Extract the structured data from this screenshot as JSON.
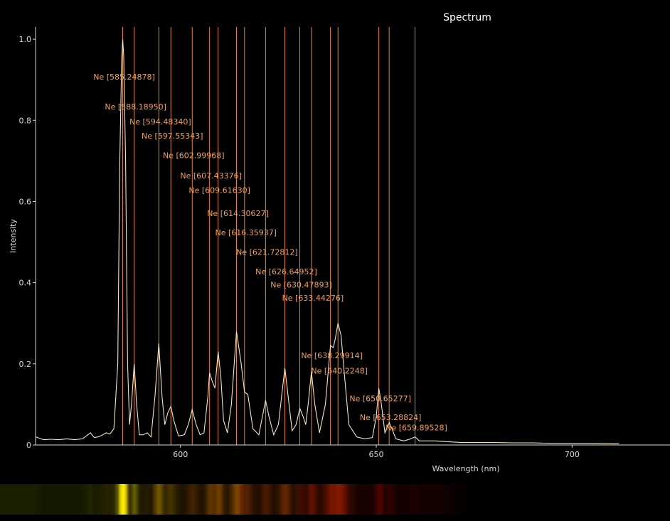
{
  "chart_data": {
    "type": "line",
    "title": "Spectrum",
    "xlabel": "Wavelength (nm)",
    "ylabel": "Intensity",
    "xlim": [
      563,
      725
    ],
    "ylim": [
      0,
      1.03
    ],
    "x_ticks": [
      "600",
      "650",
      "700"
    ],
    "x_tick_values": [
      600,
      650,
      700
    ],
    "y_ticks": [
      "0",
      "0.2",
      "0.4",
      "0.6",
      "0.8",
      "1.0"
    ],
    "y_tick_values": [
      0,
      0.2,
      0.4,
      0.6,
      0.8,
      1.0
    ],
    "grid": false,
    "colors": {
      "spectrum": "#f3e6c8",
      "reference_line": "#e8833a",
      "label": "#f0a05a",
      "background": "#000000"
    },
    "series": [
      {
        "x": [
          563,
          565,
          567,
          569,
          571,
          573,
          575,
          577,
          578,
          579,
          580,
          581,
          582,
          583,
          584,
          584.5,
          585,
          585.25,
          585.5,
          586,
          586.5,
          587,
          587.5,
          588.19,
          588.8,
          589.5,
          590.5,
          591.5,
          592.5,
          593.5,
          594.48,
          595.3,
          596,
          596.8,
          597.55,
          598.3,
          599.5,
          601,
          602,
          603,
          604,
          605,
          606,
          607,
          607.43,
          608,
          608.8,
          609.62,
          610.3,
          611,
          612,
          613,
          614.31,
          615.5,
          616.36,
          617.2,
          618.5,
          620,
          621.73,
          622.6,
          623.8,
          625,
          626.65,
          627.5,
          628.5,
          629.5,
          630.48,
          631.3,
          632,
          632.6,
          633.44,
          634.3,
          635.5,
          637,
          638.3,
          639,
          639.5,
          640.22,
          641,
          641.8,
          643,
          645,
          647,
          649,
          650,
          650.65,
          651.3,
          652.2,
          653.29,
          654,
          655,
          657,
          658.5,
          659.9,
          661,
          663,
          665,
          668,
          672,
          676,
          680,
          685,
          690,
          695,
          700,
          705,
          710,
          712
        ],
        "values": [
          0.02,
          0.013,
          0.014,
          0.013,
          0.015,
          0.013,
          0.015,
          0.03,
          0.018,
          0.02,
          0.024,
          0.03,
          0.027,
          0.04,
          0.2,
          0.7,
          0.95,
          1.0,
          0.96,
          0.7,
          0.2,
          0.05,
          0.1,
          0.2,
          0.1,
          0.025,
          0.025,
          0.03,
          0.02,
          0.12,
          0.25,
          0.12,
          0.05,
          0.08,
          0.095,
          0.06,
          0.022,
          0.025,
          0.05,
          0.087,
          0.05,
          0.025,
          0.03,
          0.12,
          0.178,
          0.16,
          0.14,
          0.23,
          0.17,
          0.06,
          0.03,
          0.1,
          0.28,
          0.2,
          0.13,
          0.125,
          0.04,
          0.025,
          0.11,
          0.07,
          0.025,
          0.05,
          0.19,
          0.12,
          0.035,
          0.05,
          0.09,
          0.07,
          0.05,
          0.1,
          0.18,
          0.1,
          0.03,
          0.1,
          0.245,
          0.24,
          0.26,
          0.3,
          0.27,
          0.18,
          0.05,
          0.02,
          0.015,
          0.018,
          0.07,
          0.14,
          0.1,
          0.03,
          0.055,
          0.04,
          0.015,
          0.01,
          0.014,
          0.02,
          0.01,
          0.01,
          0.01,
          0.008,
          0.006,
          0.006,
          0.006,
          0.005,
          0.005,
          0.004,
          0.004,
          0.004,
          0.003,
          0.003
        ]
      }
    ],
    "reference_lines": [
      {
        "wavelength": 585.24878,
        "label": "Ne [585.24878]",
        "label_y": 0.9
      },
      {
        "wavelength": 588.1895,
        "label": "Ne [588.18950]",
        "label_y": 0.827
      },
      {
        "wavelength": 594.4834,
        "label": "Ne [594.48340]",
        "label_y": 0.79
      },
      {
        "wavelength": 597.55343,
        "label": "Ne [597.55343]",
        "label_y": 0.755
      },
      {
        "wavelength": 602.99968,
        "label": "Ne [602.99968]",
        "label_y": 0.707
      },
      {
        "wavelength": 607.43376,
        "label": "Ne [607.43376]",
        "label_y": 0.657
      },
      {
        "wavelength": 609.6163,
        "label": "Ne [609.61630]",
        "label_y": 0.621
      },
      {
        "wavelength": 614.30627,
        "label": "Ne [614.30627]",
        "label_y": 0.564
      },
      {
        "wavelength": 616.35937,
        "label": "Ne [616.35937]",
        "label_y": 0.517
      },
      {
        "wavelength": 621.72812,
        "label": "Ne [621.72812]",
        "label_y": 0.469
      },
      {
        "wavelength": 626.64952,
        "label": "Ne [626.64952]",
        "label_y": 0.42
      },
      {
        "wavelength": 630.47893,
        "label": "Ne [630.47893]",
        "label_y": 0.388
      },
      {
        "wavelength": 633.44276,
        "label": "Ne [633.44276]",
        "label_y": 0.356
      },
      {
        "wavelength": 638.29914,
        "label": "Ne [638.29914]",
        "label_y": 0.214
      },
      {
        "wavelength": 640.2248,
        "label": "Ne [640.2248]",
        "label_y": 0.176
      },
      {
        "wavelength": 650.65277,
        "label": "Ne [650.65277]",
        "label_y": 0.108
      },
      {
        "wavelength": 653.28824,
        "label": "Ne [653.28824]",
        "label_y": 0.061
      },
      {
        "wavelength": 659.89528,
        "label": "Ne [659.89528]",
        "label_y": 0.036
      }
    ]
  }
}
